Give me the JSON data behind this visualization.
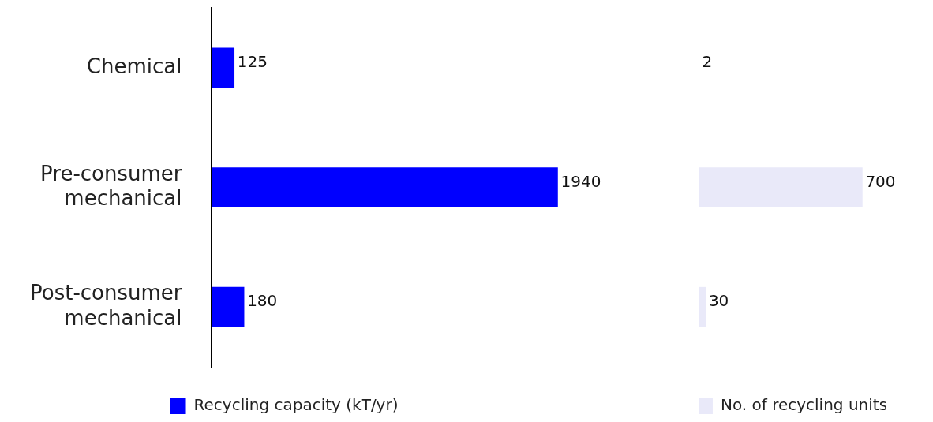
{
  "chart_data": [
    {
      "type": "bar",
      "orientation": "horizontal",
      "categories": [
        "Chemical",
        "Pre-consumer mechanical",
        "Post-consumer mechanical"
      ],
      "series": [
        {
          "name": "Recycling capacity (kT/yr)",
          "color": "#0000ff",
          "values": [
            125,
            1940,
            180
          ]
        }
      ],
      "data_labels": true,
      "legend": "bottom",
      "grid": false
    },
    {
      "type": "bar",
      "orientation": "horizontal",
      "categories": [
        null,
        null,
        null
      ],
      "series": [
        {
          "name": "No. of recycling units",
          "color": "#e9e9f9",
          "values": [
            2,
            700,
            30
          ]
        }
      ],
      "data_labels": true,
      "legend": "bottom",
      "grid": false,
      "tick_labels": false
    }
  ]
}
